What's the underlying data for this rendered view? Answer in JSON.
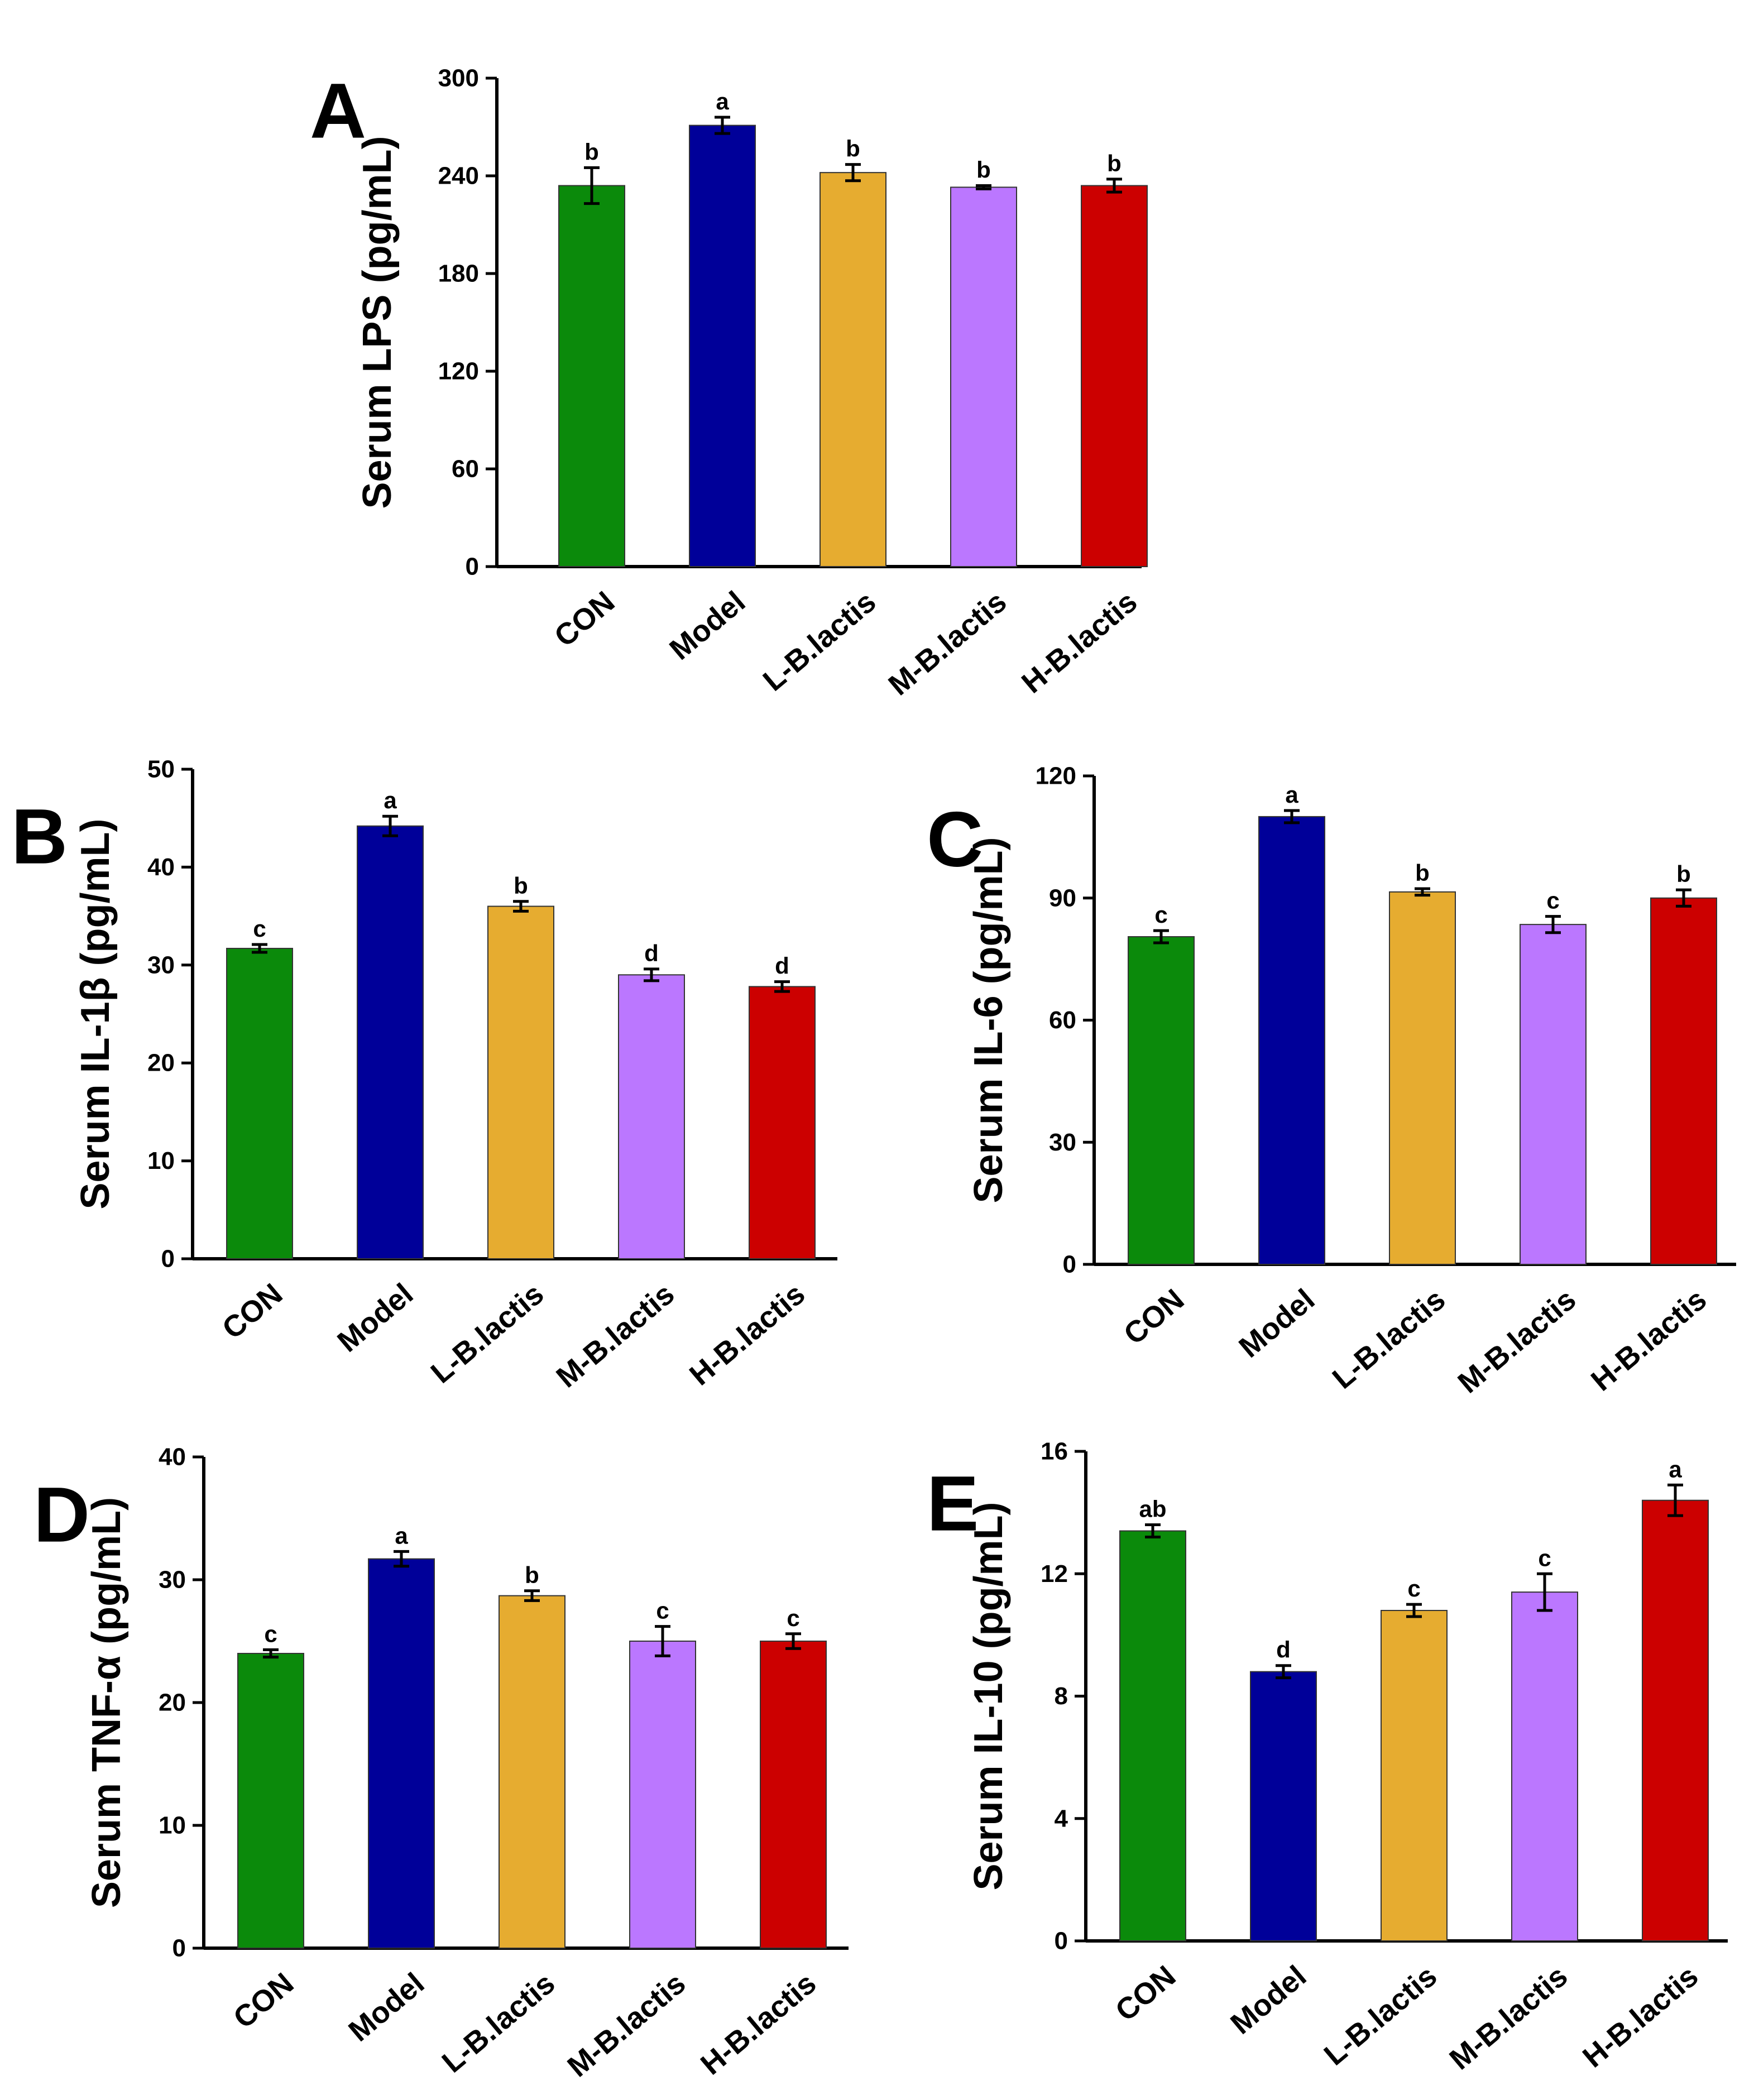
{
  "chart_data": [
    {
      "type": "bar",
      "panel": "A",
      "ylabel": "Serum LPS (pg/mL)",
      "categories": [
        "CON",
        "Model",
        "L-B.lactis",
        "M-B.lactis",
        "H-B.lactis"
      ],
      "values": [
        234,
        271,
        242,
        233,
        234
      ],
      "errors": [
        11,
        5,
        5,
        1,
        4
      ],
      "letters": [
        "b",
        "a",
        "b",
        "b",
        "b"
      ],
      "colors": [
        "#0b8a0b",
        "#000099",
        "#e6ac30",
        "#bb77ff",
        "#cc0000"
      ],
      "ylim": [
        0,
        300
      ],
      "yticks": [
        0,
        60,
        120,
        180,
        240,
        300
      ]
    },
    {
      "type": "bar",
      "panel": "B",
      "ylabel": "Serum IL-1β (pg/mL)",
      "categories": [
        "CON",
        "Model",
        "L-B.lactis",
        "M-B.lactis",
        "H-B.lactis"
      ],
      "values": [
        31.7,
        44.2,
        36.0,
        29.0,
        27.8
      ],
      "errors": [
        0.4,
        1.0,
        0.5,
        0.6,
        0.5
      ],
      "letters": [
        "c",
        "a",
        "b",
        "d",
        "d"
      ],
      "colors": [
        "#0b8a0b",
        "#000099",
        "#e6ac30",
        "#bb77ff",
        "#cc0000"
      ],
      "ylim": [
        0,
        50
      ],
      "yticks": [
        0,
        10,
        20,
        30,
        40,
        50
      ]
    },
    {
      "type": "bar",
      "panel": "C",
      "ylabel": "Serum IL-6 (pg/mL)",
      "categories": [
        "CON",
        "Model",
        "L-B.lactis",
        "M-B.lactis",
        "H-B.lactis"
      ],
      "values": [
        80.5,
        110,
        91.5,
        83.5,
        90.0
      ],
      "errors": [
        1.5,
        1.5,
        0.8,
        2.0,
        2.0
      ],
      "letters": [
        "c",
        "a",
        "b",
        "c",
        "b"
      ],
      "colors": [
        "#0b8a0b",
        "#000099",
        "#e6ac30",
        "#bb77ff",
        "#cc0000"
      ],
      "ylim": [
        0,
        120
      ],
      "yticks": [
        0,
        30,
        60,
        90,
        120
      ]
    },
    {
      "type": "bar",
      "panel": "D",
      "ylabel": "Serum TNF-α (pg/mL)",
      "categories": [
        "CON",
        "Model",
        "L-B.lactis",
        "M-B.lactis",
        "H-B.lactis"
      ],
      "values": [
        24.0,
        31.7,
        28.7,
        25.0,
        25.0
      ],
      "errors": [
        0.3,
        0.6,
        0.4,
        1.2,
        0.6
      ],
      "letters": [
        "c",
        "a",
        "b",
        "c",
        "c"
      ],
      "colors": [
        "#0b8a0b",
        "#000099",
        "#e6ac30",
        "#bb77ff",
        "#cc0000"
      ],
      "ylim": [
        0,
        40
      ],
      "yticks": [
        0,
        10,
        20,
        30,
        40
      ]
    },
    {
      "type": "bar",
      "panel": "E",
      "ylabel": "Serum IL-10 (pg/mL)",
      "categories": [
        "CON",
        "Model",
        "L-B.lactis",
        "M-B.lactis",
        "H-B.lactis"
      ],
      "values": [
        13.4,
        8.8,
        10.8,
        11.4,
        14.4
      ],
      "errors": [
        0.2,
        0.2,
        0.2,
        0.6,
        0.5
      ],
      "letters": [
        "ab",
        "d",
        "c",
        "c",
        "a"
      ],
      "colors": [
        "#0b8a0b",
        "#000099",
        "#e6ac30",
        "#bb77ff",
        "#cc0000"
      ],
      "ylim": [
        0,
        16
      ],
      "yticks": [
        0,
        4,
        8,
        12,
        16
      ]
    }
  ]
}
